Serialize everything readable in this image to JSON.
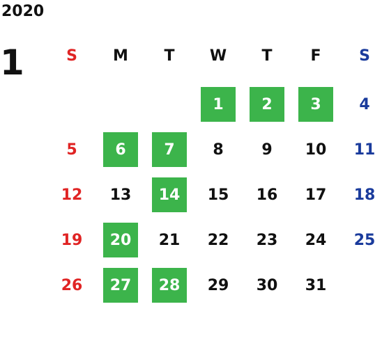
{
  "year": "2020",
  "month": "1",
  "weekdays": [
    "S",
    "M",
    "T",
    "W",
    "T",
    "F",
    "S"
  ],
  "colors": {
    "sunday": "#e02424",
    "saturday": "#1a3b9c",
    "weekday": "#111111",
    "highlight_bg": "#3cb44b",
    "highlight_text": "#ffffff"
  },
  "weeks": [
    [
      null,
      null,
      null,
      {
        "day": 1,
        "highlight": true
      },
      {
        "day": 2,
        "highlight": true
      },
      {
        "day": 3,
        "highlight": true
      },
      {
        "day": 4,
        "highlight": false
      }
    ],
    [
      {
        "day": 5,
        "highlight": false
      },
      {
        "day": 6,
        "highlight": true
      },
      {
        "day": 7,
        "highlight": true
      },
      {
        "day": 8,
        "highlight": false
      },
      {
        "day": 9,
        "highlight": false
      },
      {
        "day": 10,
        "highlight": false
      },
      {
        "day": 11,
        "highlight": false
      }
    ],
    [
      {
        "day": 12,
        "highlight": false
      },
      {
        "day": 13,
        "highlight": false
      },
      {
        "day": 14,
        "highlight": true
      },
      {
        "day": 15,
        "highlight": false
      },
      {
        "day": 16,
        "highlight": false
      },
      {
        "day": 17,
        "highlight": false
      },
      {
        "day": 18,
        "highlight": false
      }
    ],
    [
      {
        "day": 19,
        "highlight": false
      },
      {
        "day": 20,
        "highlight": true
      },
      {
        "day": 21,
        "highlight": false
      },
      {
        "day": 22,
        "highlight": false
      },
      {
        "day": 23,
        "highlight": false
      },
      {
        "day": 24,
        "highlight": false
      },
      {
        "day": 25,
        "highlight": false
      }
    ],
    [
      {
        "day": 26,
        "highlight": false
      },
      {
        "day": 27,
        "highlight": true
      },
      {
        "day": 28,
        "highlight": true
      },
      {
        "day": 29,
        "highlight": false
      },
      {
        "day": 30,
        "highlight": false
      },
      {
        "day": 31,
        "highlight": false
      },
      null
    ]
  ]
}
